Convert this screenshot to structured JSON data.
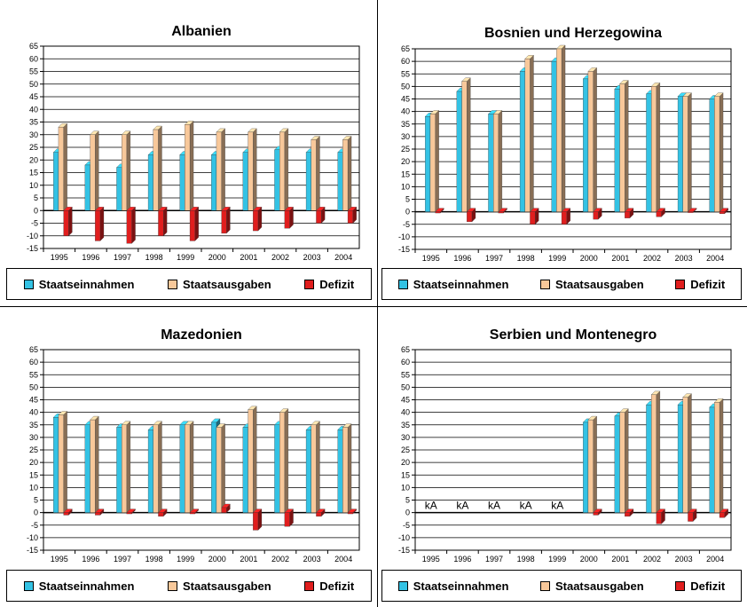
{
  "colors": {
    "revenue": "#33c2e4",
    "expenditure": "#f8c89a",
    "deficit": "#e01e1e",
    "grid": "#000000",
    "plot_bg": "#ffffff"
  },
  "legend": {
    "revenue": "Staatseinnahmen",
    "expenditure": "Staatsausgaben",
    "deficit": "Defizit"
  },
  "chart_data": [
    {
      "type": "bar",
      "title": "Albanien",
      "categories": [
        "1995",
        "1996",
        "1997",
        "1998",
        "1999",
        "2000",
        "2001",
        "2002",
        "2003",
        "2004"
      ],
      "ylim": [
        -15,
        65
      ],
      "yticks": [
        "65",
        "60",
        "55",
        "50",
        "45",
        "40",
        "35",
        "30",
        "25",
        "20",
        "15",
        "10",
        "5",
        "0",
        "-5",
        "-10",
        "-15"
      ],
      "grid": true,
      "legend_position": "bottom",
      "series": [
        {
          "name": "Staatseinnahmen",
          "values": [
            23,
            18,
            17,
            22,
            22,
            22,
            23,
            24,
            23,
            23
          ]
        },
        {
          "name": "Staatsausgaben",
          "values": [
            33,
            30,
            30,
            32,
            34,
            31,
            31,
            31,
            28,
            28
          ]
        },
        {
          "name": "Defizit",
          "values": [
            -10,
            -12,
            -13,
            -10,
            -12,
            -9,
            -8,
            -7,
            -5,
            -5
          ]
        }
      ]
    },
    {
      "type": "bar",
      "title": "Bosnien und Herzegowina",
      "categories": [
        "1995",
        "1996",
        "1997",
        "1998",
        "1999",
        "2000",
        "2001",
        "2002",
        "2003",
        "2004"
      ],
      "ylim": [
        -15,
        65
      ],
      "yticks": [
        "65",
        "60",
        "55",
        "50",
        "45",
        "40",
        "35",
        "30",
        "25",
        "20",
        "15",
        "10",
        "5",
        "0",
        "-5",
        "-10",
        "-15"
      ],
      "grid": true,
      "legend_position": "bottom",
      "series": [
        {
          "name": "Staatseinnahmen",
          "values": [
            38,
            48,
            39,
            56,
            60,
            53,
            49,
            47,
            46,
            45
          ]
        },
        {
          "name": "Staatsausgaben",
          "values": [
            39,
            52,
            39,
            61,
            65,
            56,
            51,
            50,
            46,
            46
          ]
        },
        {
          "name": "Defizit",
          "values": [
            -0.5,
            -4,
            -0.5,
            -5,
            -5,
            -3,
            -2.5,
            -2,
            -0.3,
            -0.8
          ]
        }
      ]
    },
    {
      "type": "bar",
      "title": "Mazedonien",
      "categories": [
        "1995",
        "1996",
        "1997",
        "1998",
        "1999",
        "2000",
        "2001",
        "2002",
        "2003",
        "2004"
      ],
      "ylim": [
        -15,
        65
      ],
      "yticks": [
        "65",
        "60",
        "55",
        "50",
        "45",
        "40",
        "35",
        "30",
        "25",
        "20",
        "15",
        "10",
        "5",
        "0",
        "-5",
        "-10",
        "-15"
      ],
      "grid": true,
      "legend_position": "bottom",
      "series": [
        {
          "name": "Staatseinnahmen",
          "values": [
            38,
            35,
            34,
            33,
            35,
            36,
            34,
            35,
            33,
            33
          ]
        },
        {
          "name": "Staatsausgaben",
          "values": [
            39,
            37,
            35,
            35,
            35,
            34,
            41,
            40,
            35,
            34
          ]
        },
        {
          "name": "Defizit",
          "values": [
            -1,
            -1,
            -0.5,
            -1.5,
            -0.5,
            2,
            -7,
            -5.5,
            -1.5,
            -0.5
          ]
        }
      ]
    },
    {
      "type": "bar",
      "title": "Serbien und Montenegro",
      "categories": [
        "1995",
        "1996",
        "1997",
        "1998",
        "1999",
        "2000",
        "2001",
        "2002",
        "2003",
        "2004"
      ],
      "ylim": [
        -15,
        65
      ],
      "yticks": [
        "65",
        "60",
        "55",
        "50",
        "45",
        "40",
        "35",
        "30",
        "25",
        "20",
        "15",
        "10",
        "5",
        "0",
        "-5",
        "-10",
        "-15"
      ],
      "grid": true,
      "legend_position": "bottom",
      "missing_label": "kA",
      "missing": [
        true,
        true,
        true,
        true,
        true,
        false,
        false,
        false,
        false,
        false
      ],
      "series": [
        {
          "name": "Staatseinnahmen",
          "values": [
            null,
            null,
            null,
            null,
            null,
            36,
            38.5,
            43,
            43,
            42
          ]
        },
        {
          "name": "Staatsausgaben",
          "values": [
            null,
            null,
            null,
            null,
            null,
            37,
            40,
            47,
            46,
            44
          ]
        },
        {
          "name": "Defizit",
          "values": [
            null,
            null,
            null,
            null,
            null,
            -1,
            -1.5,
            -4.5,
            -3.5,
            -2
          ]
        }
      ]
    }
  ]
}
